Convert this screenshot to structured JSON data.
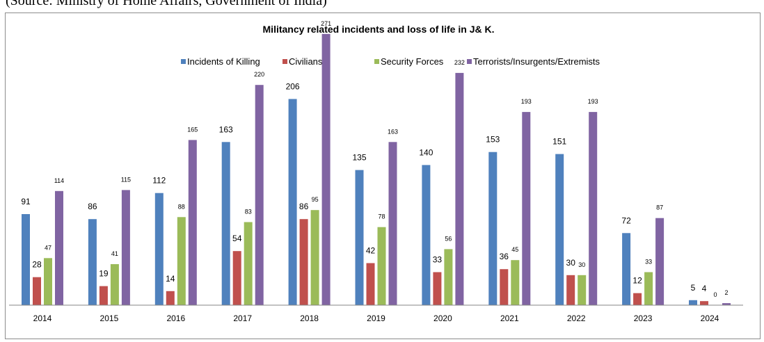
{
  "page_top_text": "(Source: Ministry of Home Affairs, Government of India)",
  "chart_data": {
    "type": "bar",
    "title": "Militancy related incidents and loss of life in J& K.",
    "xlabel": "",
    "ylabel": "",
    "ylim": [
      0,
      280
    ],
    "grid": false,
    "legend_position": "top",
    "categories": [
      "2014",
      "2015",
      "2016",
      "2017",
      "2018",
      "2019",
      "2020",
      "2021",
      "2022",
      "2023",
      "2024"
    ],
    "series": [
      {
        "name": "Incidents of Killing",
        "color": "#4f81bd",
        "values": [
          91,
          86,
          112,
          163,
          206,
          135,
          140,
          153,
          151,
          72,
          5
        ]
      },
      {
        "name": "Civilians",
        "color": "#c0504d",
        "values": [
          28,
          19,
          14,
          54,
          86,
          42,
          33,
          36,
          30,
          12,
          4
        ]
      },
      {
        "name": "Security Forces",
        "color": "#9bbb59",
        "values": [
          47,
          41,
          88,
          83,
          95,
          78,
          56,
          45,
          30,
          33,
          0
        ]
      },
      {
        "name": "Terrorists/Insurgents/Extremists",
        "color": "#8064a2",
        "values": [
          114,
          115,
          165,
          220,
          271,
          163,
          232,
          193,
          193,
          87,
          2
        ]
      }
    ]
  }
}
